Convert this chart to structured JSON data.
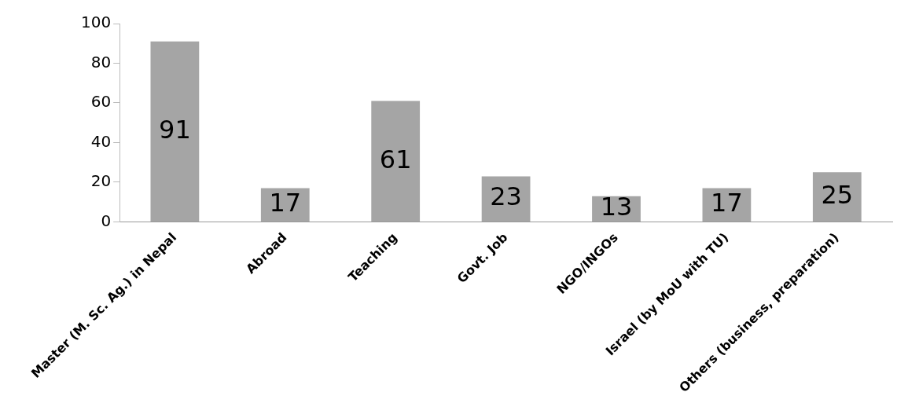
{
  "chart_data": {
    "type": "bar",
    "categories": [
      "Master (M. Sc. Ag.) in Nepal",
      "Abroad",
      "Teaching",
      "Govt. Job",
      "NGO/INGOs",
      "Israel (by MoU with TU)",
      "Others (business, preparation)"
    ],
    "values": [
      91,
      17,
      61,
      23,
      13,
      17,
      25
    ],
    "color": "#a5a5a5",
    "ylim": [
      0,
      100
    ],
    "yticks": [
      0,
      20,
      40,
      60,
      80,
      100
    ],
    "grid": false,
    "legend": false,
    "data_labels": true
  }
}
